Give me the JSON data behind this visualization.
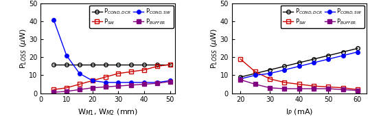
{
  "left": {
    "xlabel": "W$_{{M1}}$, W$_{{M2}}$ (mm)",
    "ylabel": "P$_{{LOSS}}$ ($\\mu$W)",
    "xlim": [
      2,
      52
    ],
    "ylim": [
      0,
      50
    ],
    "yticks": [
      0,
      10,
      20,
      30,
      40,
      50
    ],
    "xticks": [
      0,
      10,
      20,
      30,
      40,
      50
    ],
    "series": {
      "PCOND_DCR": {
        "x": [
          5,
          10,
          15,
          20,
          25,
          30,
          35,
          40,
          45,
          50
        ],
        "y": [
          16,
          16,
          16,
          16,
          16,
          16,
          16,
          16,
          16,
          16
        ],
        "color": "#000000",
        "marker": "o",
        "fillstyle": "none",
        "linestyle": "-",
        "label": "P$_{{COND,DCR}}$"
      },
      "PCOND_SW": {
        "x": [
          5,
          10,
          15,
          20,
          25,
          30,
          35,
          40,
          45,
          50
        ],
        "y": [
          41,
          21,
          11,
          7,
          6,
          6,
          6,
          6,
          6,
          7
        ],
        "color": "#0000ff",
        "marker": "o",
        "fillstyle": "full",
        "linestyle": "-",
        "label": "P$_{{COND,SW}}$"
      },
      "PSW": {
        "x": [
          5,
          10,
          15,
          20,
          25,
          30,
          35,
          40,
          45,
          50
        ],
        "y": [
          2,
          3,
          5,
          7,
          9,
          11,
          12,
          13,
          15,
          16
        ],
        "color": "#cc0000",
        "marker": "s",
        "fillstyle": "none",
        "linestyle": "-",
        "label": "P$_{{SW}}$"
      },
      "PBUFFER": {
        "x": [
          5,
          10,
          15,
          20,
          25,
          30,
          35,
          40,
          45,
          50
        ],
        "y": [
          0.5,
          1.0,
          2.0,
          3.0,
          3.5,
          4.0,
          4.5,
          5.0,
          5.5,
          6.5
        ],
        "color": "#800080",
        "marker": "s",
        "fillstyle": "full",
        "linestyle": "-",
        "label": "P$_{{BUFFER}}$"
      }
    }
  },
  "right": {
    "xlabel": "I$_{{P}}$ (mA)",
    "ylabel": "P$_{{LOSS}}$ ($\\mu$W)",
    "xlim": [
      17,
      63
    ],
    "ylim": [
      0,
      50
    ],
    "yticks": [
      0,
      10,
      20,
      30,
      40,
      50
    ],
    "xticks": [
      20,
      30,
      40,
      50,
      60
    ],
    "series": {
      "PCOND_DCR": {
        "x": [
          20,
          25,
          30,
          35,
          40,
          45,
          50,
          55,
          60
        ],
        "y": [
          9,
          11,
          13,
          15,
          17,
          19,
          21,
          23,
          25
        ],
        "color": "#000000",
        "marker": "o",
        "fillstyle": "none",
        "linestyle": "-",
        "label": "P$_{{COND,DCR}}$"
      },
      "PCOND_SW": {
        "x": [
          20,
          25,
          30,
          35,
          40,
          45,
          50,
          55,
          60
        ],
        "y": [
          8,
          10,
          11,
          13,
          15,
          17,
          19,
          21,
          23
        ],
        "color": "#0000ff",
        "marker": "o",
        "fillstyle": "full",
        "linestyle": "-",
        "label": "P$_{{COND,SW}}$"
      },
      "PSW": {
        "x": [
          20,
          25,
          30,
          35,
          40,
          45,
          50,
          55,
          60
        ],
        "y": [
          19,
          12,
          8,
          6,
          5,
          4,
          3.5,
          3,
          2
        ],
        "color": "#cc0000",
        "marker": "s",
        "fillstyle": "none",
        "linestyle": "-",
        "label": "P$_{{SW}}$"
      },
      "PBUFFER": {
        "x": [
          20,
          25,
          30,
          35,
          40,
          45,
          50,
          55,
          60
        ],
        "y": [
          7.5,
          5.0,
          3.0,
          2.5,
          2.5,
          2.5,
          2.5,
          2.0,
          1.5
        ],
        "color": "#800080",
        "marker": "s",
        "fillstyle": "full",
        "linestyle": "-",
        "label": "P$_{{BUFFER}}$"
      }
    }
  },
  "legend_order": [
    "PCOND_DCR",
    "PSW",
    "PCOND_SW",
    "PBUFFER"
  ],
  "marker_size": 4,
  "linewidth": 1.0,
  "tick_fontsize": 7,
  "label_fontsize": 8,
  "legend_fontsize": 6
}
